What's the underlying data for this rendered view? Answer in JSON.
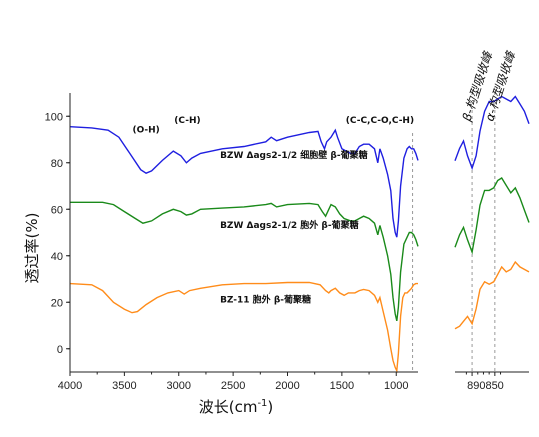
{
  "chart_data": {
    "type": "line",
    "main_panel": {
      "x_label_main": "波长(cm",
      "x_label_sup": "-1",
      "x_label_close": ")",
      "y_label": "透过率(%)",
      "x_range": [
        4000,
        800
      ],
      "y_range": [
        -10,
        110
      ],
      "x_ticks": [
        "4000",
        "3500",
        "3000",
        "2500",
        "2000",
        "1500",
        "1000"
      ],
      "x_tick_values": [
        4000,
        3500,
        3000,
        2500,
        2000,
        1500,
        1000
      ],
      "y_ticks": [
        "0",
        "20",
        "40",
        "60",
        "80",
        "100"
      ],
      "y_tick_values": [
        0,
        20,
        40,
        60,
        80,
        100
      ],
      "peak_labels": [
        {
          "text": "(O-H)",
          "x": 3300,
          "y": 93
        },
        {
          "text": "(C-H)",
          "x": 2920,
          "y": 97
        },
        {
          "text": "(C-C,C-O,C-H)",
          "x": 1150,
          "y": 97
        }
      ],
      "reference_line_x": 850,
      "series": [
        {
          "name": "BZW Δags2-1/2 细胞壁 β-葡聚糖",
          "color": "#1f1fe0",
          "label_pos": {
            "x": 2620,
            "y": 82
          },
          "points": [
            [
              4000,
              95.5
            ],
            [
              3800,
              95
            ],
            [
              3650,
              94
            ],
            [
              3550,
              91
            ],
            [
              3450,
              84
            ],
            [
              3350,
              77
            ],
            [
              3300,
              75.5
            ],
            [
              3250,
              76.5
            ],
            [
              3150,
              81
            ],
            [
              3050,
              85
            ],
            [
              2980,
              83
            ],
            [
              2930,
              80
            ],
            [
              2880,
              82
            ],
            [
              2800,
              84
            ],
            [
              2600,
              86
            ],
            [
              2400,
              87
            ],
            [
              2200,
              89
            ],
            [
              2150,
              91
            ],
            [
              2100,
              89.5
            ],
            [
              2000,
              91
            ],
            [
              1900,
              92
            ],
            [
              1800,
              93
            ],
            [
              1720,
              93.5
            ],
            [
              1690,
              89
            ],
            [
              1660,
              86
            ],
            [
              1640,
              89
            ],
            [
              1600,
              91
            ],
            [
              1560,
              94
            ],
            [
              1540,
              91
            ],
            [
              1500,
              86
            ],
            [
              1460,
              85
            ],
            [
              1420,
              84
            ],
            [
              1380,
              84
            ],
            [
              1340,
              87
            ],
            [
              1300,
              88
            ],
            [
              1250,
              88
            ],
            [
              1200,
              86
            ],
            [
              1170,
              80
            ],
            [
              1150,
              86
            ],
            [
              1120,
              82
            ],
            [
              1080,
              75
            ],
            [
              1050,
              68
            ],
            [
              1030,
              56
            ],
            [
              1010,
              50
            ],
            [
              995,
              48
            ],
            [
              980,
              55
            ],
            [
              960,
              70
            ],
            [
              930,
              82
            ],
            [
              900,
              86
            ],
            [
              880,
              87
            ],
            [
              860,
              86
            ],
            [
              840,
              86
            ],
            [
              820,
              84
            ],
            [
              800,
              81
            ]
          ]
        },
        {
          "name": "BZW Δags2-1/2 胞外 β-葡聚糖",
          "color": "#1a8a1a",
          "label_pos": {
            "x": 2620,
            "y": 52
          },
          "points": [
            [
              4000,
              63
            ],
            [
              3700,
              63
            ],
            [
              3600,
              62
            ],
            [
              3500,
              59
            ],
            [
              3400,
              56
            ],
            [
              3330,
              54
            ],
            [
              3250,
              55
            ],
            [
              3150,
              58
            ],
            [
              3050,
              60
            ],
            [
              2980,
              59
            ],
            [
              2930,
              57.5
            ],
            [
              2880,
              58
            ],
            [
              2800,
              60
            ],
            [
              2600,
              60.5
            ],
            [
              2400,
              61
            ],
            [
              2200,
              62
            ],
            [
              2150,
              62.5
            ],
            [
              2100,
              61
            ],
            [
              2000,
              62
            ],
            [
              1800,
              62.5
            ],
            [
              1720,
              62
            ],
            [
              1680,
              59
            ],
            [
              1650,
              57
            ],
            [
              1620,
              60
            ],
            [
              1600,
              62
            ],
            [
              1560,
              61
            ],
            [
              1520,
              58
            ],
            [
              1480,
              56
            ],
            [
              1420,
              55
            ],
            [
              1380,
              55
            ],
            [
              1340,
              56
            ],
            [
              1300,
              57
            ],
            [
              1250,
              56
            ],
            [
              1200,
              54
            ],
            [
              1170,
              49
            ],
            [
              1150,
              53
            ],
            [
              1120,
              48
            ],
            [
              1080,
              40
            ],
            [
              1050,
              32
            ],
            [
              1030,
              22
            ],
            [
              1010,
              15
            ],
            [
              995,
              12
            ],
            [
              980,
              18
            ],
            [
              960,
              33
            ],
            [
              930,
              45
            ],
            [
              900,
              48
            ],
            [
              880,
              50
            ],
            [
              860,
              50
            ],
            [
              840,
              49
            ],
            [
              820,
              47
            ],
            [
              800,
              44
            ]
          ]
        },
        {
          "name": "BZ-11 胞外 β-葡聚糖",
          "color": "#ff8c1a",
          "label_pos": {
            "x": 2620,
            "y": 20
          },
          "points": [
            [
              4000,
              28
            ],
            [
              3800,
              27.5
            ],
            [
              3700,
              25
            ],
            [
              3600,
              20
            ],
            [
              3500,
              17
            ],
            [
              3430,
              15.5
            ],
            [
              3380,
              16
            ],
            [
              3300,
              19
            ],
            [
              3200,
              22
            ],
            [
              3100,
              24
            ],
            [
              3000,
              25
            ],
            [
              2950,
              23.5
            ],
            [
              2900,
              25
            ],
            [
              2800,
              26
            ],
            [
              2600,
              27.5
            ],
            [
              2400,
              28
            ],
            [
              2200,
              28
            ],
            [
              2000,
              28.5
            ],
            [
              1800,
              28.5
            ],
            [
              1700,
              27.5
            ],
            [
              1650,
              25
            ],
            [
              1620,
              24
            ],
            [
              1600,
              25
            ],
            [
              1560,
              26
            ],
            [
              1520,
              24
            ],
            [
              1480,
              23
            ],
            [
              1440,
              24
            ],
            [
              1380,
              24
            ],
            [
              1340,
              25
            ],
            [
              1300,
              25.5
            ],
            [
              1250,
              25
            ],
            [
              1200,
              23
            ],
            [
              1170,
              20
            ],
            [
              1150,
              22
            ],
            [
              1120,
              16
            ],
            [
              1080,
              8
            ],
            [
              1050,
              0
            ],
            [
              1030,
              -5
            ],
            [
              1010,
              -8
            ],
            [
              995,
              -9.5
            ],
            [
              980,
              -2
            ],
            [
              960,
              14
            ],
            [
              940,
              22
            ],
            [
              920,
              24
            ],
            [
              900,
              24
            ],
            [
              880,
              25
            ],
            [
              860,
              26
            ],
            [
              840,
              27.5
            ],
            [
              820,
              28
            ],
            [
              800,
              28
            ]
          ]
        }
      ]
    },
    "zoom_panel": {
      "x_range": [
        920,
        790
      ],
      "x_ticks": [
        "890",
        "850"
      ],
      "x_tick_values": [
        890,
        850
      ],
      "reference_lines": [
        {
          "x": 890,
          "label": "β-构型吸收峰"
        },
        {
          "x": 850,
          "label": "α-构型吸收峰"
        }
      ],
      "series": [
        {
          "color": "#1f1fe0",
          "points": [
            [
              920,
              0.58
            ],
            [
              912,
              0.63
            ],
            [
              905,
              0.66
            ],
            [
              898,
              0.6
            ],
            [
              890,
              0.55
            ],
            [
              883,
              0.6
            ],
            [
              876,
              0.7
            ],
            [
              868,
              0.78
            ],
            [
              860,
              0.82
            ],
            [
              852,
              0.82
            ],
            [
              845,
              0.83
            ],
            [
              838,
              0.84
            ],
            [
              830,
              0.83
            ],
            [
              822,
              0.82
            ],
            [
              814,
              0.84
            ],
            [
              806,
              0.81
            ],
            [
              798,
              0.78
            ],
            [
              790,
              0.73
            ]
          ]
        },
        {
          "color": "#1a8a1a",
          "points": [
            [
              920,
              0.23
            ],
            [
              912,
              0.28
            ],
            [
              905,
              0.31
            ],
            [
              898,
              0.26
            ],
            [
              890,
              0.21
            ],
            [
              883,
              0.3
            ],
            [
              876,
              0.4
            ],
            [
              868,
              0.46
            ],
            [
              860,
              0.46
            ],
            [
              852,
              0.47
            ],
            [
              845,
              0.5
            ],
            [
              838,
              0.51
            ],
            [
              830,
              0.48
            ],
            [
              822,
              0.45
            ],
            [
              814,
              0.47
            ],
            [
              806,
              0.43
            ],
            [
              798,
              0.38
            ],
            [
              790,
              0.33
            ]
          ]
        },
        {
          "color": "#ff8c1a",
          "points": [
            [
              920,
              -0.1
            ],
            [
              912,
              -0.09
            ],
            [
              905,
              -0.07
            ],
            [
              898,
              -0.05
            ],
            [
              890,
              -0.08
            ],
            [
              883,
              -0.02
            ],
            [
              876,
              0.06
            ],
            [
              868,
              0.09
            ],
            [
              860,
              0.08
            ],
            [
              852,
              0.09
            ],
            [
              845,
              0.12
            ],
            [
              838,
              0.15
            ],
            [
              830,
              0.13
            ],
            [
              822,
              0.14
            ],
            [
              814,
              0.17
            ],
            [
              806,
              0.15
            ],
            [
              798,
              0.14
            ],
            [
              790,
              0.13
            ]
          ]
        }
      ]
    }
  }
}
